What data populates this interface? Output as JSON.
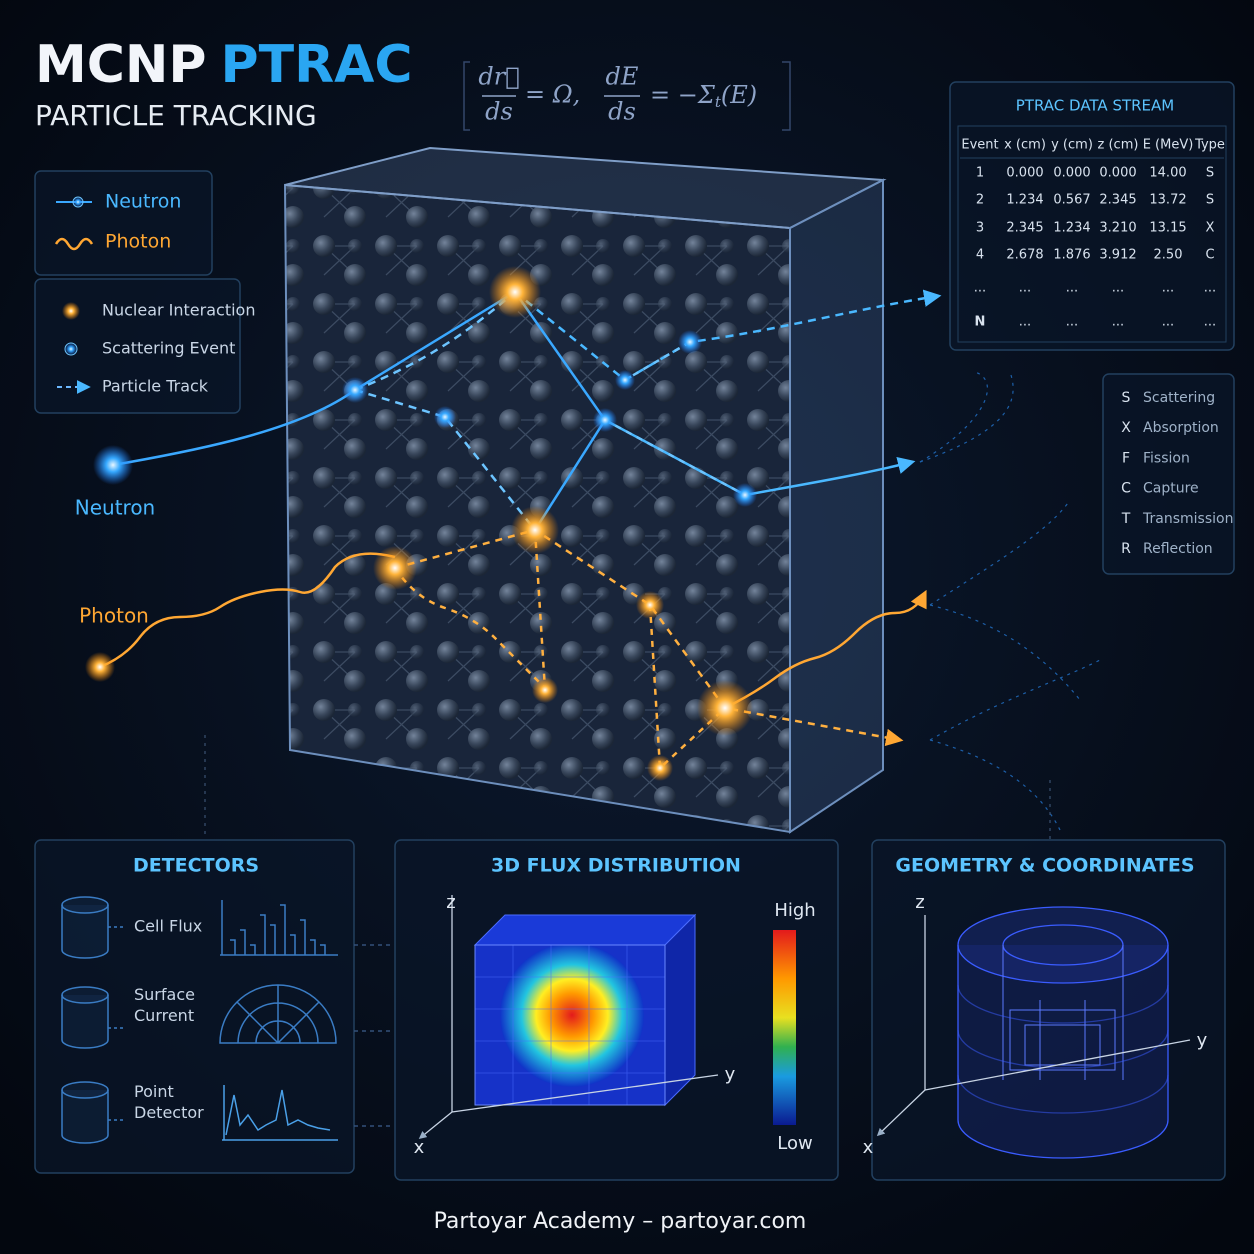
{
  "header": {
    "title_a": "MCNP",
    "title_b": "PTRAC",
    "subtitle": "PARTICLE TRACKING",
    "equation": {
      "frac1_num": "dr⃗",
      "frac1_den": "ds",
      "rel1": "= Ω,",
      "frac2_num": "dE",
      "frac2_den": "ds",
      "rel2": "= −Σ",
      "sub": "t",
      "tail": "(E)"
    }
  },
  "legend": {
    "particles": [
      "Neutron",
      "Photon"
    ],
    "events": [
      "Nuclear Interaction",
      "Scattering Event",
      "Particle Track"
    ]
  },
  "labels": {
    "neutron": "Neutron",
    "photon": "Photon"
  },
  "table": {
    "title": "PTRAC DATA STREAM",
    "columns": [
      "Event",
      "x (cm)",
      "y (cm)",
      "z (cm)",
      "E (MeV)",
      "Type"
    ],
    "rows": [
      [
        "1",
        "0.000",
        "0.000",
        "0.000",
        "14.00",
        "S"
      ],
      [
        "2",
        "1.234",
        "0.567",
        "2.345",
        "13.72",
        "S"
      ],
      [
        "3",
        "2.345",
        "1.234",
        "3.210",
        "13.15",
        "X"
      ],
      [
        "4",
        "2.678",
        "1.876",
        "3.912",
        "2.50",
        "C"
      ],
      [
        "...",
        "...",
        "...",
        "...",
        "...",
        "..."
      ],
      [
        "N",
        "...",
        "...",
        "...",
        "...",
        "..."
      ]
    ]
  },
  "codes": [
    {
      "code": "S",
      "label": "Scattering"
    },
    {
      "code": "X",
      "label": "Absorption"
    },
    {
      "code": "F",
      "label": "Fission"
    },
    {
      "code": "C",
      "label": "Capture"
    },
    {
      "code": "T",
      "label": "Transmission"
    },
    {
      "code": "R",
      "label": "Reflection"
    }
  ],
  "detectors": {
    "title": "DETECTORS",
    "items": [
      {
        "lines": [
          "Cell Flux"
        ]
      },
      {
        "lines": [
          "Surface",
          "Current"
        ]
      },
      {
        "lines": [
          "Point",
          "Detector"
        ]
      }
    ]
  },
  "flux": {
    "title": "3D FLUX DISTRIBUTION",
    "axes": {
      "z": "z",
      "y": "y",
      "x": "x"
    },
    "high": "High",
    "low": "Low"
  },
  "geometry": {
    "title": "GEOMETRY & COORDINATES",
    "axes": {
      "z": "z",
      "y": "y",
      "x": "x"
    }
  },
  "footer": "Partoyar Academy – partoyar.com"
}
